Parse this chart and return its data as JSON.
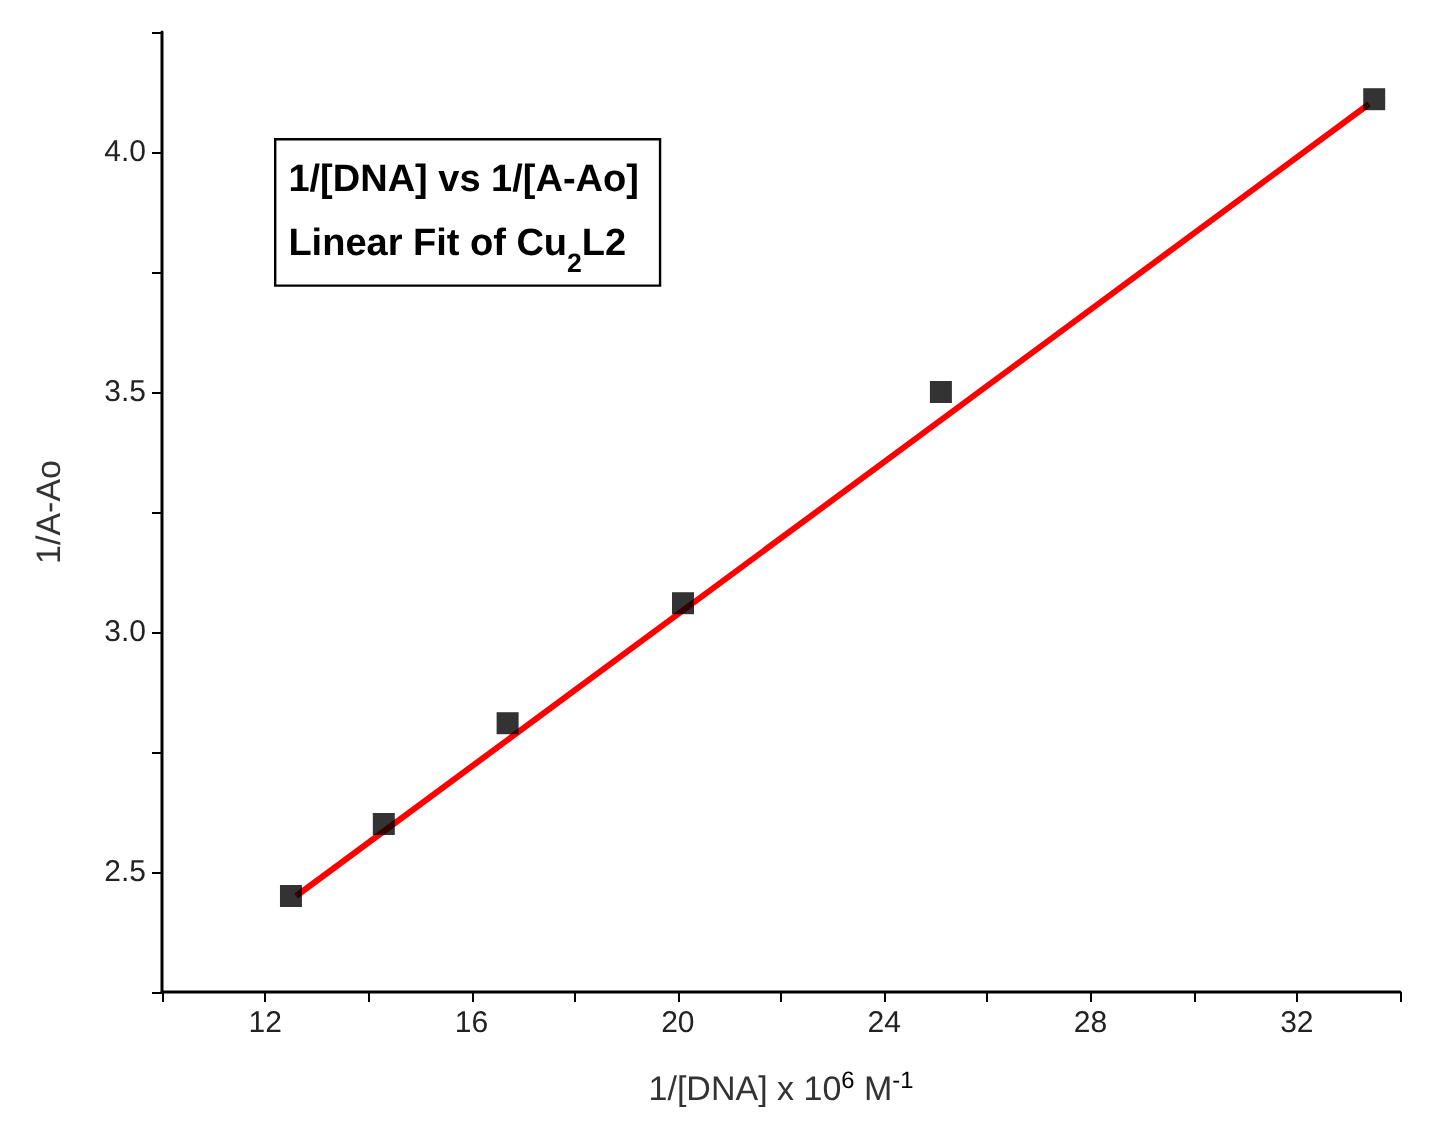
{
  "chart_data": {
    "type": "scatter",
    "xlabel": "1/[DNA] x 10$^{6}$ M$^{-1}$",
    "ylabel": "1/A-Ao",
    "annotations": [
      "1/[DNA] vs 1/[A-Ao]",
      "Linear Fit of Cu$_{2}$L2"
    ],
    "xlim": [
      10,
      34
    ],
    "xticks": [
      {
        "value": 10,
        "label": null
      },
      12,
      {
        "value": 14,
        "label": null
      },
      16,
      {
        "value": 18,
        "label": null
      },
      20,
      {
        "value": 22,
        "label": null
      },
      24,
      {
        "value": 26,
        "label": null
      },
      28,
      {
        "value": 30,
        "label": null
      },
      32,
      {
        "value": 34,
        "label": null
      }
    ],
    "ylim": [
      2.25,
      4.25
    ],
    "yticks": [
      {
        "value": 2.25,
        "label": null
      },
      {
        "value": 2.5,
        "label": "2.5"
      },
      {
        "value": 2.75,
        "label": null
      },
      {
        "value": 3,
        "label": "3.0"
      },
      {
        "value": 3.25,
        "label": null
      },
      {
        "value": 3.5,
        "label": "3.5"
      },
      {
        "value": 3.75,
        "label": null
      },
      {
        "value": 4,
        "label": "4.0"
      },
      {
        "value": 4.25,
        "label": null
      }
    ],
    "grid": false,
    "marker": "square",
    "series": [
      {
        "color": "#000000",
        "x": [
          12.5,
          14.3,
          16.7,
          20.1,
          25.1,
          33.5
        ],
        "values": [
          2.45,
          2.6,
          2.81,
          3.06,
          3.5,
          4.11
        ]
      },
      {
        "type": "line",
        "color": "#ff0000",
        "marker": "none",
        "line_style": "solid",
        "x": [
          12.6,
          33.4
        ],
        "values": [
          2.45,
          4.1
        ]
      }
    ]
  }
}
